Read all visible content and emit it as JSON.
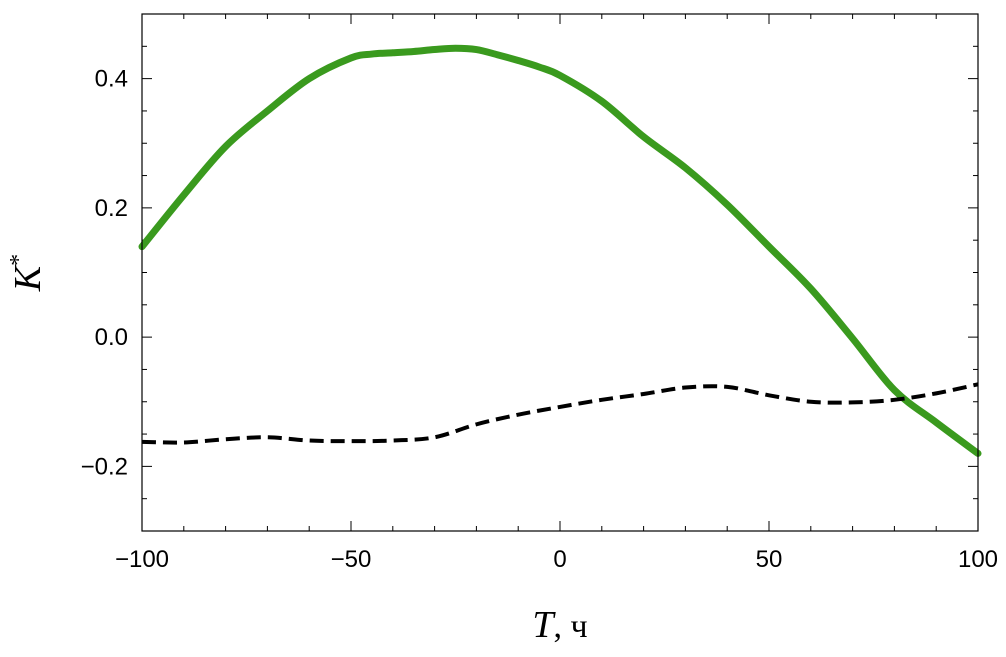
{
  "chart_data": {
    "type": "line",
    "xlabel": "T",
    "xlabel_unit": ", ч",
    "ylabel": "K",
    "ylabel_sup": "*",
    "xlim": [
      -100,
      100
    ],
    "ylim": [
      -0.3,
      0.5
    ],
    "x_ticks": [
      -100,
      -50,
      0,
      50,
      100
    ],
    "x_tick_labels": [
      "−100",
      "−50",
      "0",
      "50",
      "100"
    ],
    "y_ticks": [
      -0.2,
      0.0,
      0.2,
      0.4
    ],
    "y_tick_labels": [
      "−0.2",
      "0.0",
      "0.2",
      "0.4"
    ],
    "grid": false,
    "series": [
      {
        "style": "solid",
        "color": "#3a9a1e",
        "x": [
          -100,
          -90,
          -80,
          -70,
          -60,
          -50,
          -45,
          -40,
          -35,
          -30,
          -25,
          -20,
          -15,
          -10,
          -5,
          0,
          10,
          20,
          30,
          40,
          50,
          60,
          70,
          80,
          90,
          100
        ],
        "y": [
          0.14,
          0.22,
          0.295,
          0.35,
          0.4,
          0.432,
          0.438,
          0.44,
          0.442,
          0.445,
          0.447,
          0.445,
          0.437,
          0.428,
          0.418,
          0.405,
          0.365,
          0.31,
          0.262,
          0.205,
          0.14,
          0.075,
          -0.002,
          -0.082,
          -0.132,
          -0.18
        ]
      },
      {
        "style": "dashed",
        "color": "#000000",
        "x": [
          -100,
          -90,
          -80,
          -70,
          -60,
          -50,
          -40,
          -30,
          -20,
          -10,
          0,
          10,
          20,
          30,
          40,
          50,
          60,
          70,
          80,
          90,
          100
        ],
        "y": [
          -0.162,
          -0.163,
          -0.158,
          -0.155,
          -0.16,
          -0.161,
          -0.16,
          -0.155,
          -0.135,
          -0.12,
          -0.108,
          -0.097,
          -0.088,
          -0.078,
          -0.077,
          -0.09,
          -0.1,
          -0.101,
          -0.097,
          -0.087,
          -0.073
        ]
      }
    ]
  }
}
